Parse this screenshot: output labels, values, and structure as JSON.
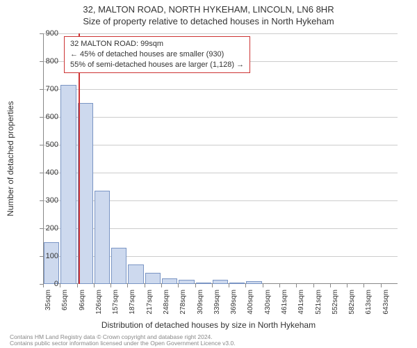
{
  "header": {
    "line1": "32, MALTON ROAD, NORTH HYKEHAM, LINCOLN, LN6 8HR",
    "line2": "Size of property relative to detached houses in North Hykeham"
  },
  "chart": {
    "type": "histogram",
    "ylabel": "Number of detached properties",
    "xlabel": "Distribution of detached houses by size in North Hykeham",
    "ylim_max": 900,
    "ytick_step": 100,
    "bar_fill": "#cdd9ee",
    "bar_border": "#7a95c4",
    "grid_color": "#cccccc",
    "axis_color": "#888888",
    "background": "#ffffff",
    "reference_line": {
      "value_sqm": 99,
      "color": "#cc3333"
    },
    "categories": [
      "35sqm",
      "65sqm",
      "96sqm",
      "126sqm",
      "157sqm",
      "187sqm",
      "217sqm",
      "248sqm",
      "278sqm",
      "309sqm",
      "339sqm",
      "369sqm",
      "400sqm",
      "430sqm",
      "461sqm",
      "491sqm",
      "521sqm",
      "552sqm",
      "582sqm",
      "613sqm",
      "643sqm"
    ],
    "values": [
      150,
      715,
      650,
      335,
      130,
      70,
      40,
      20,
      15,
      6,
      15,
      6,
      10,
      0,
      0,
      0,
      0,
      0,
      0,
      0,
      0
    ]
  },
  "annotation": {
    "line1": "32 MALTON ROAD: 99sqm",
    "line2": "← 45% of detached houses are smaller (930)",
    "line3": "55% of semi-detached houses are larger (1,128) →"
  },
  "footer": {
    "line1": "Contains HM Land Registry data © Crown copyright and database right 2024.",
    "line2": "Contains public sector information licensed under the Open Government Licence v3.0."
  }
}
